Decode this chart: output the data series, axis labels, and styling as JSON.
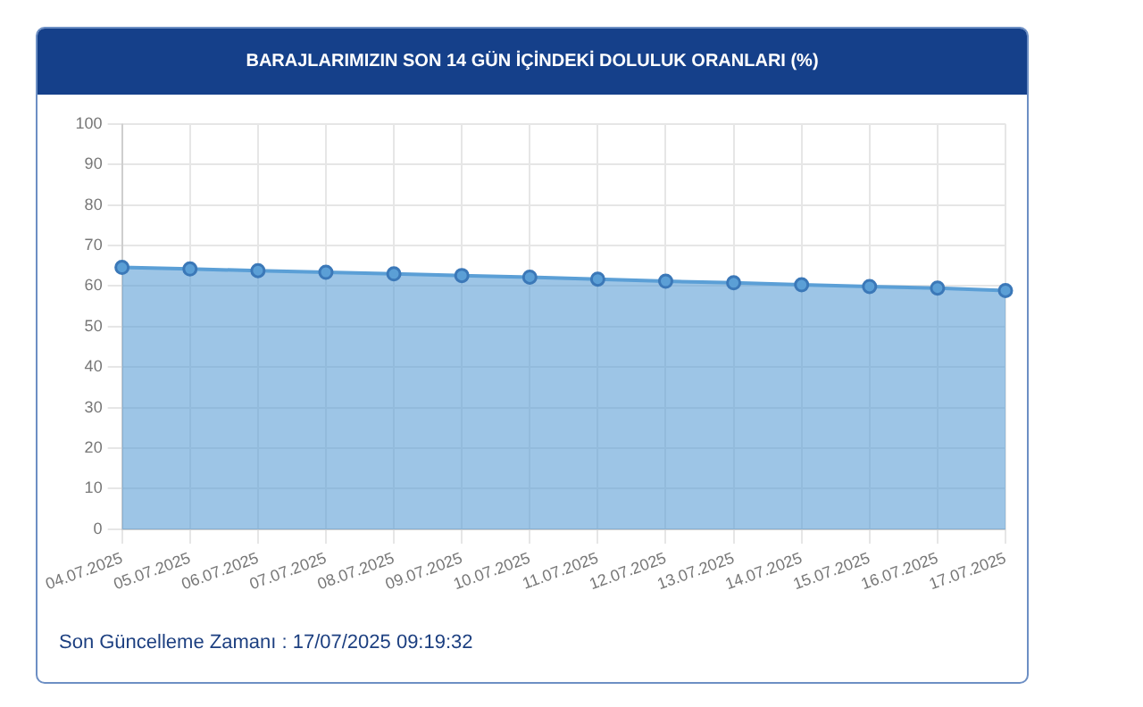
{
  "chart_data": {
    "type": "area",
    "title": "BARAJLARIMIZIN SON 14 GÜN İÇİNDEKİ DOLULUK ORANLARI (%)",
    "categories": [
      "04.07.2025",
      "05.07.2025",
      "06.07.2025",
      "07.07.2025",
      "08.07.2025",
      "09.07.2025",
      "10.07.2025",
      "11.07.2025",
      "12.07.2025",
      "13.07.2025",
      "14.07.2025",
      "15.07.2025",
      "16.07.2025",
      "17.07.2025"
    ],
    "series": [
      {
        "color": "#5b9fd6",
        "values": [
          64.6,
          64.2,
          63.8,
          63.4,
          63.0,
          62.6,
          62.2,
          61.7,
          61.2,
          60.8,
          60.3,
          59.9,
          59.5,
          58.9
        ]
      }
    ],
    "ylim": [
      0,
      100
    ],
    "yticks": [
      0,
      10,
      20,
      30,
      40,
      50,
      60,
      70,
      80,
      90,
      100
    ],
    "grid": true,
    "marker": "circle",
    "annotations": [
      "Son Güncelleme Zamanı : 17/07/2025 09:19:32"
    ]
  }
}
